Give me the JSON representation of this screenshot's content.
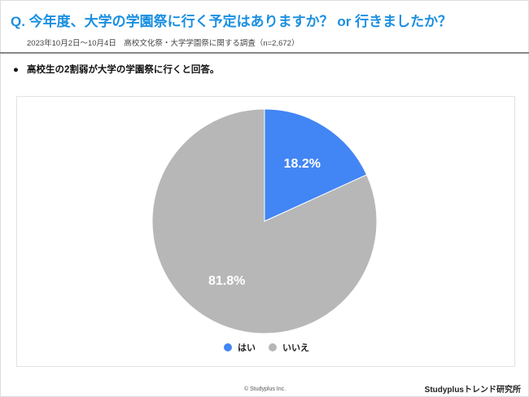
{
  "header": {
    "title": "Q. 今年度、大学の学園祭に行く予定はありますか？ or 行きましたか？",
    "subtitle": "2023年10月2日〜10月4日　高校文化祭・大学学園祭に関する調査（n=2,672）"
  },
  "summary": {
    "bullet": "●",
    "text": "高校生の2割弱が大学の学園祭に行くと回答。"
  },
  "chart_data": {
    "type": "pie",
    "categories": [
      "はい",
      "いいえ"
    ],
    "values": [
      18.2,
      81.8
    ],
    "labels": [
      "18.2%",
      "81.8%"
    ],
    "colors": [
      "#4285f4",
      "#b7b7b7"
    ],
    "legend": "bottom",
    "start": "top, clockwise"
  },
  "footer": {
    "copyright": "© Studyplus Inc.",
    "brand": "Studyplusトレンド研究所"
  }
}
